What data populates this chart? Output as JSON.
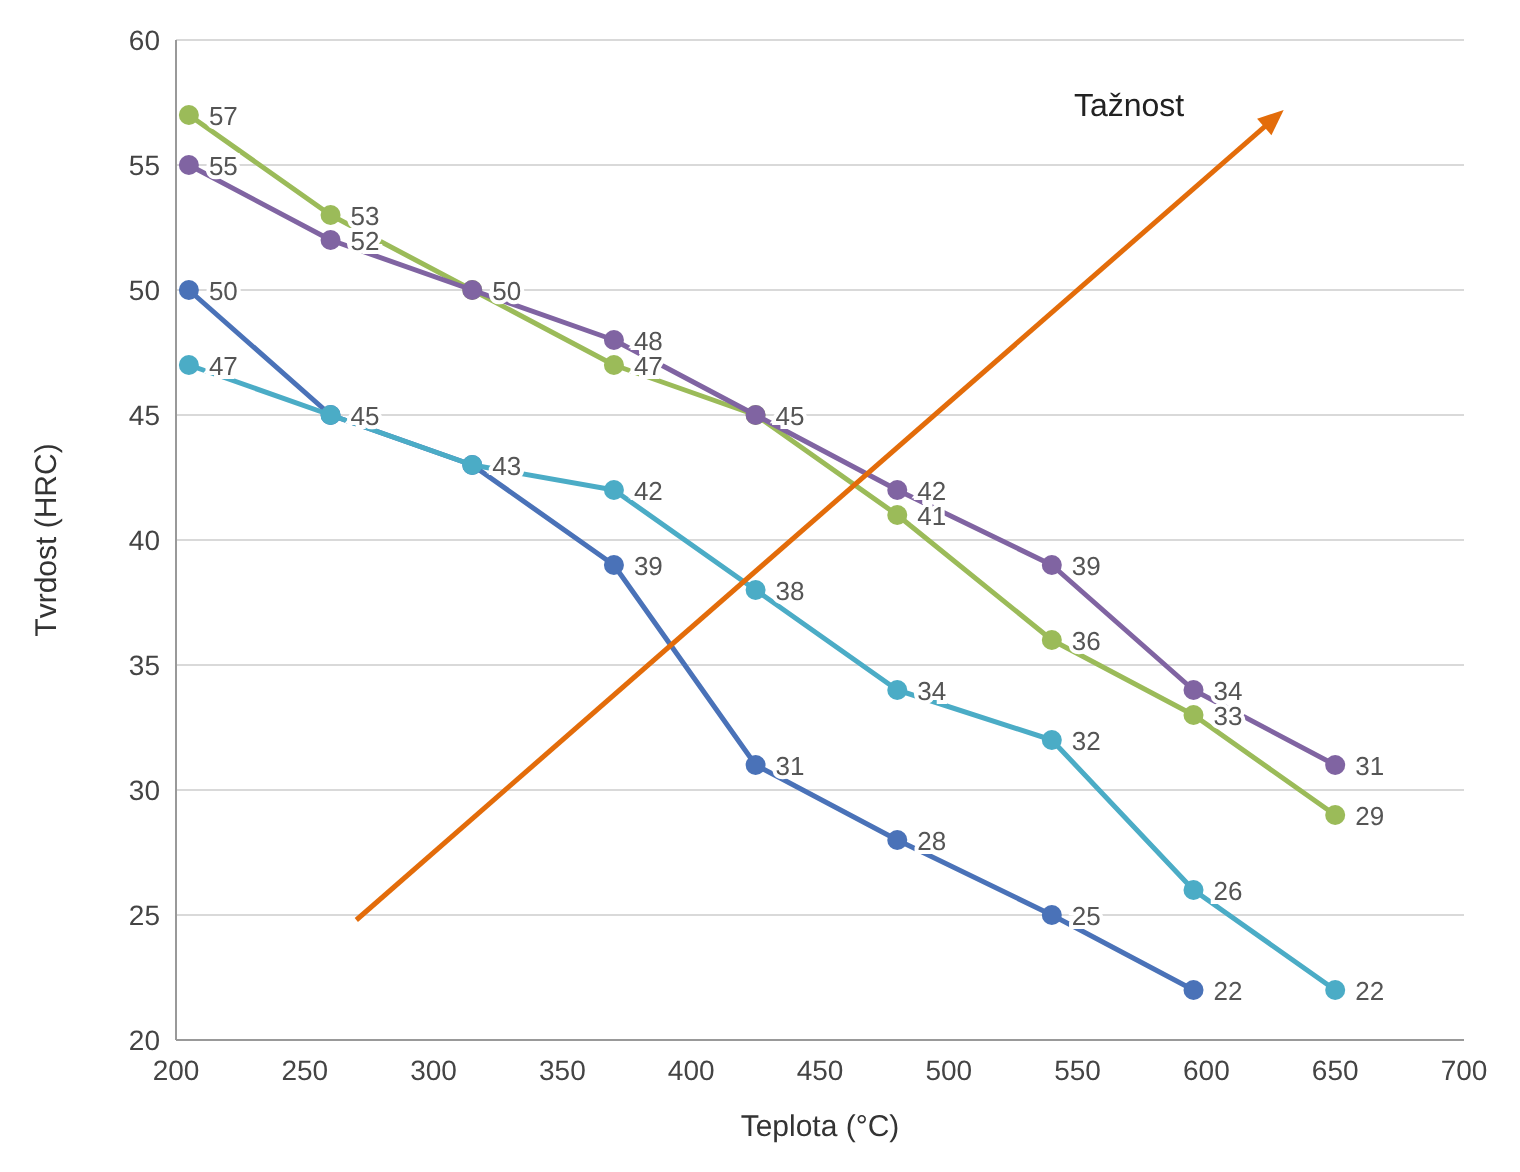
{
  "chart_data": {
    "type": "line",
    "xlabel": "Teplota (°C)",
    "ylabel": "Tvrdost (HRC)",
    "annotations": [
      "Tažnost"
    ],
    "series": [
      {
        "color": "#4a72b8",
        "x": [
          205,
          260,
          315,
          370,
          425,
          480,
          540,
          595
        ],
        "values": [
          50,
          45,
          43,
          39,
          31,
          28,
          25,
          22
        ],
        "value_labels": [
          "50",
          "45",
          "43",
          "39",
          "31",
          "28",
          "25",
          "22"
        ]
      },
      {
        "color": "#4bacc6",
        "x": [
          205,
          260,
          315,
          370,
          425,
          480,
          540,
          595,
          650
        ],
        "values": [
          47,
          45,
          43,
          42,
          38,
          34,
          32,
          26,
          22
        ],
        "value_labels": [
          "47",
          null,
          null,
          "42",
          "38",
          "34",
          "32",
          "26",
          "22"
        ]
      },
      {
        "color": "#9bbb59",
        "x": [
          205,
          260,
          315,
          370,
          425,
          480,
          540,
          595,
          650
        ],
        "values": [
          57,
          53,
          50,
          47,
          45,
          41,
          36,
          33,
          29
        ],
        "value_labels": [
          "57",
          "53",
          "50",
          "47",
          "45",
          "41",
          "36",
          "33",
          "29"
        ]
      },
      {
        "color": "#8064a2",
        "x": [
          205,
          260,
          315,
          370,
          425,
          480,
          540,
          595,
          650
        ],
        "values": [
          55,
          52,
          50,
          48,
          45,
          42,
          39,
          34,
          31
        ],
        "value_labels": [
          "55",
          "52",
          null,
          "48",
          null,
          "42",
          "39",
          "34",
          "31"
        ]
      }
    ],
    "xlim": [
      200,
      700
    ],
    "xticks": [
      200,
      250,
      300,
      350,
      400,
      450,
      500,
      550,
      600,
      650,
      700
    ],
    "ylim": [
      20,
      60
    ],
    "yticks": [
      20,
      25,
      30,
      35,
      40,
      45,
      50,
      55,
      60
    ],
    "grid": "y",
    "marker": "circle",
    "line_style": "solid"
  }
}
